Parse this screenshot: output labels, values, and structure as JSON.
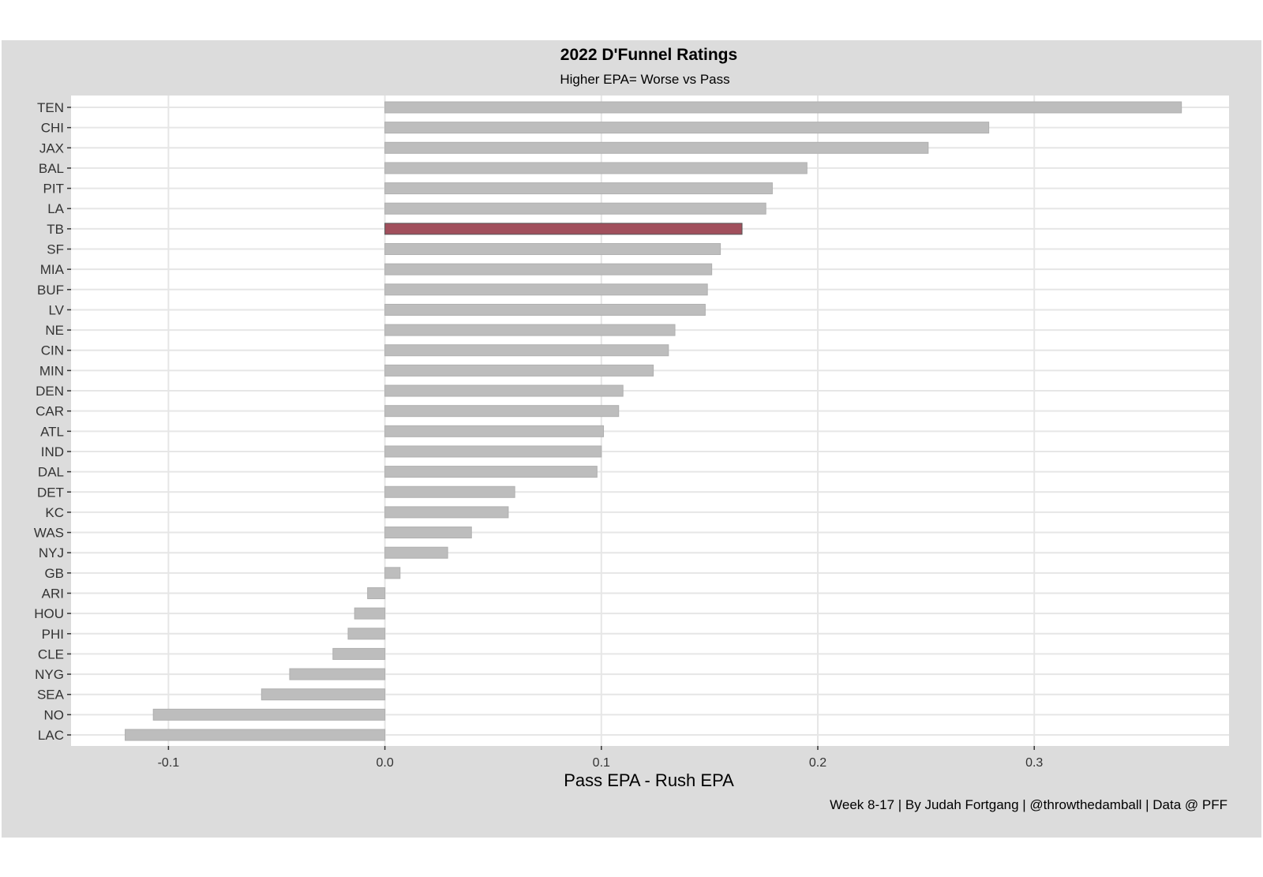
{
  "chart_data": {
    "type": "bar",
    "orientation": "horizontal",
    "title": "2022 D'Funnel Ratings",
    "subtitle": "Higher EPA= Worse vs Pass",
    "xlabel": "Pass EPA - Rush EPA",
    "ylabel": "",
    "caption": "Week 8-17 | By Judah Fortgang | @throwthedamball | Data @ PFF",
    "xlim": [
      -0.145,
      0.39
    ],
    "xticks": [
      -0.1,
      0.0,
      0.1,
      0.2,
      0.3
    ],
    "xtick_labels": [
      "-0.1",
      "0.0",
      "0.1",
      "0.2",
      "0.3"
    ],
    "grid": true,
    "highlight": "TB",
    "colors": {
      "bar": "#bdbdbd",
      "highlight": "#a14f5c",
      "panel": "#ffffff",
      "background": "#dcdcdc",
      "grid": "#e6e6e6"
    },
    "categories": [
      "TEN",
      "CHI",
      "JAX",
      "BAL",
      "PIT",
      "LA",
      "TB",
      "SF",
      "MIA",
      "BUF",
      "LV",
      "NE",
      "CIN",
      "MIN",
      "DEN",
      "CAR",
      "ATL",
      "IND",
      "DAL",
      "DET",
      "KC",
      "WAS",
      "NYJ",
      "GB",
      "ARI",
      "HOU",
      "PHI",
      "CLE",
      "NYG",
      "SEA",
      "NO",
      "LAC"
    ],
    "values": [
      0.368,
      0.279,
      0.251,
      0.195,
      0.179,
      0.176,
      0.165,
      0.155,
      0.151,
      0.149,
      0.148,
      0.134,
      0.131,
      0.124,
      0.11,
      0.108,
      0.101,
      0.1,
      0.098,
      0.06,
      0.057,
      0.04,
      0.029,
      0.007,
      -0.008,
      -0.014,
      -0.017,
      -0.024,
      -0.044,
      -0.057,
      -0.107,
      -0.12
    ]
  }
}
